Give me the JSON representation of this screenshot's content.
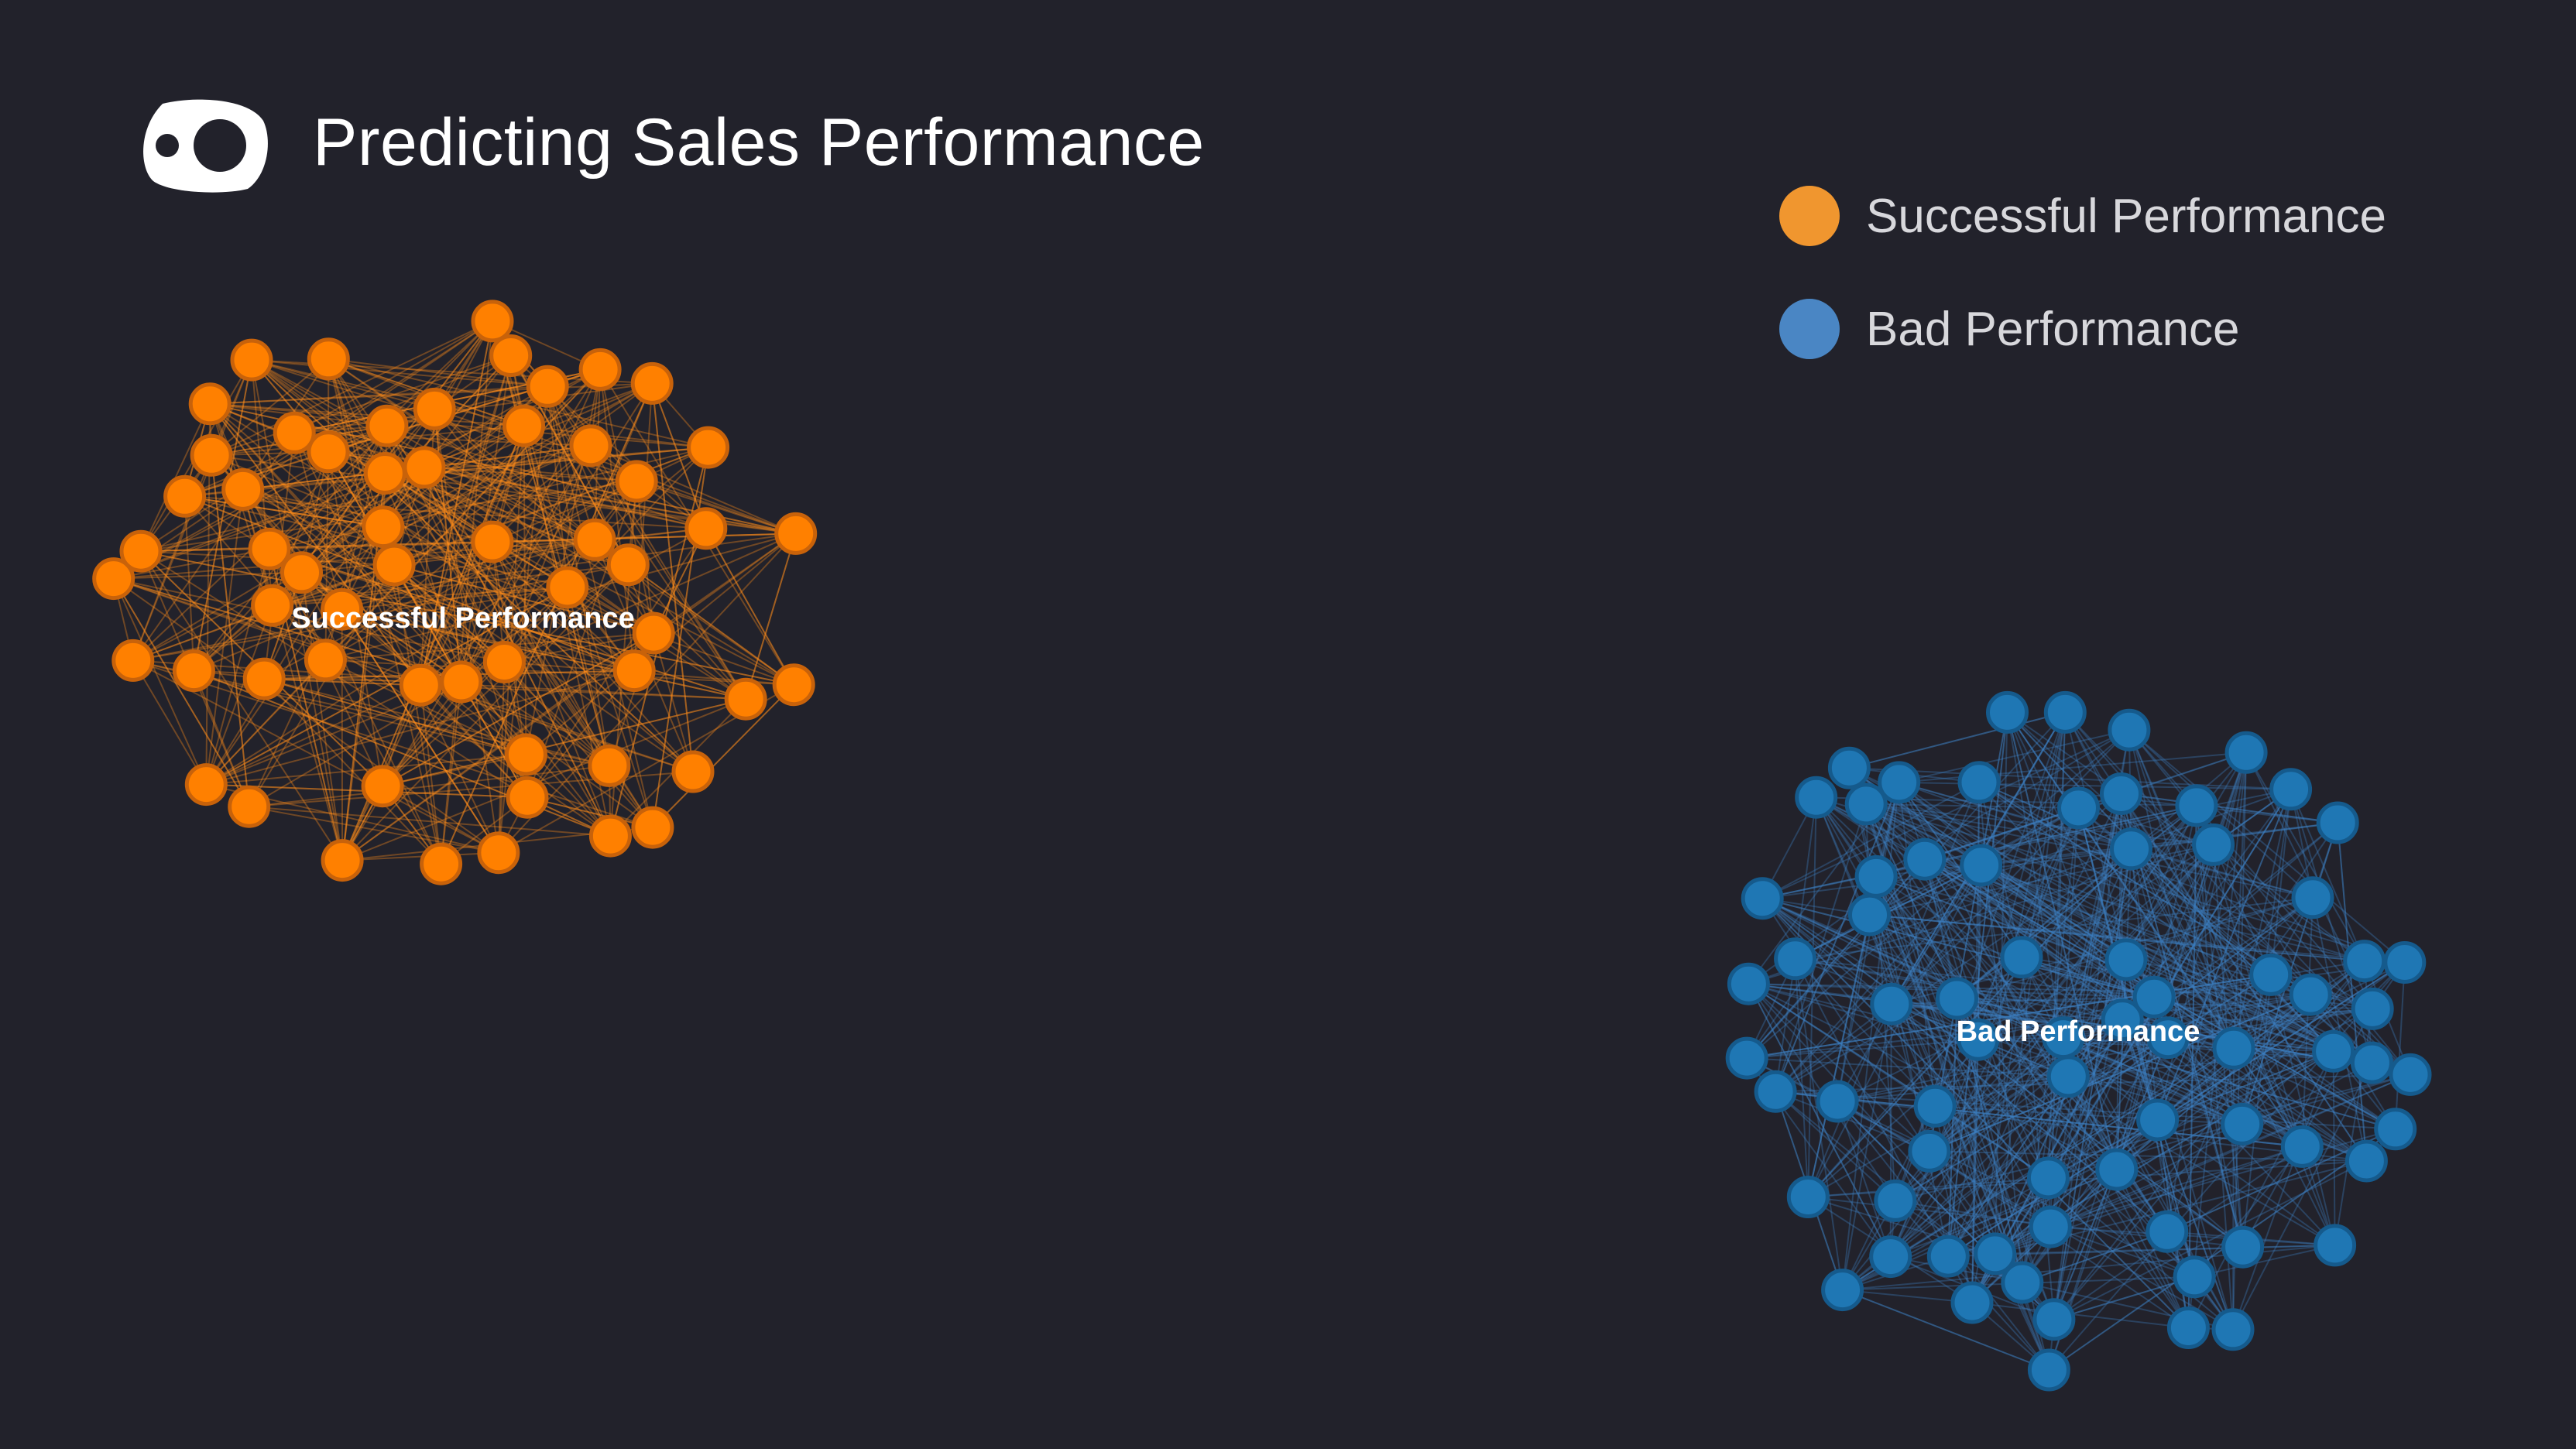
{
  "title": "Predicting Sales Performance",
  "logo_icon": "toggle-eye-logo",
  "legend": [
    {
      "label": "Successful Performance",
      "color": "#f0962f"
    },
    {
      "label": "Bad Performance",
      "color": "#4a86c4"
    }
  ],
  "clusters": [
    {
      "label": "Successful Performance",
      "node_color": "#ff8000",
      "node_border": "#c8620a",
      "edge_color": "#ff8c1a",
      "node_count": 58
    },
    {
      "label": "Bad Performance",
      "node_color": "#1f77b4",
      "node_border": "#155a8c",
      "edge_color": "#3b7fbf",
      "node_count": 72
    }
  ]
}
